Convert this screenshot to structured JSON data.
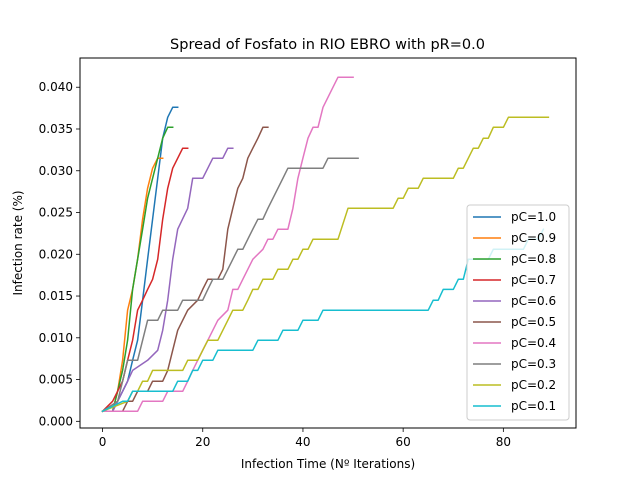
{
  "chart_data": {
    "type": "line",
    "title": "Spread of Fosfato in RIO EBRO with pR=0.0",
    "xlabel": "Infection Time (Nº Iterations)",
    "ylabel": "Infection rate (%)",
    "xlim": [
      -4.5,
      94.5
    ],
    "ylim": [
      -0.0008,
      0.0435
    ],
    "xticks": [
      0,
      20,
      40,
      60,
      80
    ],
    "xtick_labels": [
      "0",
      "20",
      "40",
      "60",
      "80"
    ],
    "yticks": [
      0.0,
      0.005,
      0.01,
      0.015,
      0.02,
      0.025,
      0.03,
      0.035,
      0.04
    ],
    "ytick_labels": [
      "0.000",
      "0.005",
      "0.010",
      "0.015",
      "0.020",
      "0.025",
      "0.030",
      "0.035",
      "0.040"
    ],
    "grid": false,
    "legend_position": "lower-right",
    "series": [
      {
        "name": "pC=1.0",
        "color": "#1f77b4",
        "points": [
          [
            0,
            0.0012
          ],
          [
            2,
            0.0012
          ],
          [
            3,
            0.0024
          ],
          [
            4,
            0.0036
          ],
          [
            5,
            0.0048
          ],
          [
            6,
            0.0073
          ],
          [
            7,
            0.0097
          ],
          [
            8,
            0.0145
          ],
          [
            9,
            0.0194
          ],
          [
            10,
            0.0242
          ],
          [
            11,
            0.0291
          ],
          [
            12,
            0.0339
          ],
          [
            13,
            0.0364
          ],
          [
            14,
            0.0376
          ],
          [
            15,
            0.0376
          ]
        ]
      },
      {
        "name": "pC=0.9",
        "color": "#ff7f0e",
        "points": [
          [
            0,
            0.0012
          ],
          [
            2,
            0.0012
          ],
          [
            3,
            0.0036
          ],
          [
            4,
            0.0073
          ],
          [
            5,
            0.0133
          ],
          [
            6,
            0.0158
          ],
          [
            7,
            0.0194
          ],
          [
            8,
            0.0242
          ],
          [
            9,
            0.0279
          ],
          [
            10,
            0.0303
          ],
          [
            11,
            0.0315
          ],
          [
            12,
            0.0315
          ]
        ]
      },
      {
        "name": "pC=0.8",
        "color": "#2ca02c",
        "points": [
          [
            0,
            0.0012
          ],
          [
            2,
            0.0012
          ],
          [
            3,
            0.0036
          ],
          [
            4,
            0.0061
          ],
          [
            5,
            0.0097
          ],
          [
            6,
            0.0158
          ],
          [
            7,
            0.0194
          ],
          [
            8,
            0.023
          ],
          [
            9,
            0.0267
          ],
          [
            10,
            0.0291
          ],
          [
            11,
            0.0315
          ],
          [
            12,
            0.0339
          ],
          [
            13,
            0.0352
          ],
          [
            14,
            0.0352
          ]
        ]
      },
      {
        "name": "pC=0.7",
        "color": "#d62728",
        "points": [
          [
            0,
            0.0012
          ],
          [
            2,
            0.0024
          ],
          [
            3,
            0.0036
          ],
          [
            4,
            0.0048
          ],
          [
            5,
            0.0073
          ],
          [
            6,
            0.0097
          ],
          [
            7,
            0.0133
          ],
          [
            8,
            0.0145
          ],
          [
            9,
            0.0158
          ],
          [
            10,
            0.017
          ],
          [
            11,
            0.0194
          ],
          [
            12,
            0.0242
          ],
          [
            13,
            0.0279
          ],
          [
            14,
            0.0303
          ],
          [
            15,
            0.0315
          ],
          [
            16,
            0.0327
          ],
          [
            17,
            0.0327
          ]
        ]
      },
      {
        "name": "pC=0.6",
        "color": "#9467bd",
        "points": [
          [
            0,
            0.0012
          ],
          [
            2,
            0.0012
          ],
          [
            3,
            0.0024
          ],
          [
            4,
            0.0036
          ],
          [
            5,
            0.0048
          ],
          [
            6,
            0.0061
          ],
          [
            9,
            0.0073
          ],
          [
            11,
            0.0085
          ],
          [
            12,
            0.0109
          ],
          [
            13,
            0.0145
          ],
          [
            14,
            0.0194
          ],
          [
            15,
            0.023
          ],
          [
            17,
            0.0255
          ],
          [
            18,
            0.0291
          ],
          [
            20,
            0.0291
          ],
          [
            21,
            0.0303
          ],
          [
            22,
            0.0315
          ],
          [
            24,
            0.0315
          ],
          [
            25,
            0.0327
          ],
          [
            26,
            0.0327
          ]
        ]
      },
      {
        "name": "pC=0.5",
        "color": "#8c564b",
        "points": [
          [
            0,
            0.0012
          ],
          [
            4,
            0.0012
          ],
          [
            5,
            0.0024
          ],
          [
            6,
            0.0024
          ],
          [
            7,
            0.0036
          ],
          [
            9,
            0.0036
          ],
          [
            10,
            0.0048
          ],
          [
            12,
            0.0048
          ],
          [
            13,
            0.0061
          ],
          [
            14,
            0.0085
          ],
          [
            15,
            0.0109
          ],
          [
            17,
            0.0133
          ],
          [
            19,
            0.0145
          ],
          [
            20,
            0.0158
          ],
          [
            21,
            0.017
          ],
          [
            23,
            0.017
          ],
          [
            24,
            0.0182
          ],
          [
            25,
            0.023
          ],
          [
            26,
            0.0255
          ],
          [
            27,
            0.0279
          ],
          [
            28,
            0.0291
          ],
          [
            29,
            0.0315
          ],
          [
            30,
            0.0327
          ],
          [
            31,
            0.0339
          ],
          [
            32,
            0.0352
          ],
          [
            33,
            0.0352
          ]
        ]
      },
      {
        "name": "pC=0.4",
        "color": "#e377c2",
        "points": [
          [
            0,
            0.0012
          ],
          [
            7,
            0.0012
          ],
          [
            8,
            0.0024
          ],
          [
            12,
            0.0024
          ],
          [
            13,
            0.0036
          ],
          [
            16,
            0.0036
          ],
          [
            17,
            0.0048
          ],
          [
            18,
            0.0061
          ],
          [
            19,
            0.0073
          ],
          [
            20,
            0.0085
          ],
          [
            21,
            0.0097
          ],
          [
            22,
            0.0109
          ],
          [
            23,
            0.0121
          ],
          [
            25,
            0.0133
          ],
          [
            26,
            0.0158
          ],
          [
            27,
            0.0158
          ],
          [
            28,
            0.017
          ],
          [
            29,
            0.0182
          ],
          [
            30,
            0.0194
          ],
          [
            32,
            0.0206
          ],
          [
            33,
            0.0218
          ],
          [
            34,
            0.0218
          ],
          [
            35,
            0.023
          ],
          [
            37,
            0.023
          ],
          [
            38,
            0.0255
          ],
          [
            39,
            0.0291
          ],
          [
            40,
            0.0315
          ],
          [
            41,
            0.0339
          ],
          [
            42,
            0.0352
          ],
          [
            43,
            0.0352
          ],
          [
            44,
            0.0376
          ],
          [
            46,
            0.04
          ],
          [
            47,
            0.0412
          ],
          [
            50,
            0.0412
          ]
        ]
      },
      {
        "name": "pC=0.3",
        "color": "#7f7f7f",
        "points": [
          [
            0,
            0.0012
          ],
          [
            3,
            0.0024
          ],
          [
            4,
            0.0048
          ],
          [
            5,
            0.0073
          ],
          [
            7,
            0.0073
          ],
          [
            8,
            0.0097
          ],
          [
            9,
            0.0121
          ],
          [
            11,
            0.0121
          ],
          [
            12,
            0.0133
          ],
          [
            15,
            0.0133
          ],
          [
            16,
            0.0145
          ],
          [
            20,
            0.0145
          ],
          [
            21,
            0.0158
          ],
          [
            22,
            0.017
          ],
          [
            24,
            0.017
          ],
          [
            25,
            0.0182
          ],
          [
            26,
            0.0194
          ],
          [
            27,
            0.0206
          ],
          [
            28,
            0.0206
          ],
          [
            29,
            0.0218
          ],
          [
            30,
            0.023
          ],
          [
            31,
            0.0242
          ],
          [
            32,
            0.0242
          ],
          [
            33,
            0.0255
          ],
          [
            34,
            0.0267
          ],
          [
            35,
            0.0279
          ],
          [
            36,
            0.0291
          ],
          [
            37,
            0.0303
          ],
          [
            44,
            0.0303
          ],
          [
            45,
            0.0315
          ],
          [
            51,
            0.0315
          ]
        ]
      },
      {
        "name": "pC=0.2",
        "color": "#bcbd22",
        "points": [
          [
            0,
            0.0012
          ],
          [
            5,
            0.0024
          ],
          [
            6,
            0.0036
          ],
          [
            7,
            0.0036
          ],
          [
            8,
            0.0048
          ],
          [
            9,
            0.0048
          ],
          [
            10,
            0.0061
          ],
          [
            16,
            0.0061
          ],
          [
            17,
            0.0073
          ],
          [
            19,
            0.0073
          ],
          [
            20,
            0.0085
          ],
          [
            21,
            0.0097
          ],
          [
            23,
            0.0097
          ],
          [
            24,
            0.0109
          ],
          [
            25,
            0.0121
          ],
          [
            26,
            0.0133
          ],
          [
            28,
            0.0133
          ],
          [
            29,
            0.0145
          ],
          [
            30,
            0.0158
          ],
          [
            31,
            0.0158
          ],
          [
            32,
            0.017
          ],
          [
            34,
            0.017
          ],
          [
            35,
            0.0182
          ],
          [
            37,
            0.0182
          ],
          [
            38,
            0.0194
          ],
          [
            39,
            0.0194
          ],
          [
            40,
            0.0206
          ],
          [
            41,
            0.0206
          ],
          [
            42,
            0.0218
          ],
          [
            47,
            0.0218
          ],
          [
            49,
            0.0255
          ],
          [
            58,
            0.0255
          ],
          [
            59,
            0.0267
          ],
          [
            60,
            0.0267
          ],
          [
            61,
            0.0279
          ],
          [
            63,
            0.0279
          ],
          [
            64,
            0.0291
          ],
          [
            70,
            0.0291
          ],
          [
            71,
            0.0303
          ],
          [
            72,
            0.0303
          ],
          [
            73,
            0.0315
          ],
          [
            74,
            0.0327
          ],
          [
            75,
            0.0327
          ],
          [
            76,
            0.0339
          ],
          [
            77,
            0.0339
          ],
          [
            78,
            0.0352
          ],
          [
            80,
            0.0352
          ],
          [
            81,
            0.0364
          ],
          [
            89,
            0.0364
          ]
        ]
      },
      {
        "name": "pC=0.1",
        "color": "#17becf",
        "points": [
          [
            0,
            0.0012
          ],
          [
            4,
            0.0024
          ],
          [
            5,
            0.0024
          ],
          [
            6,
            0.0036
          ],
          [
            14,
            0.0036
          ],
          [
            15,
            0.0048
          ],
          [
            17,
            0.0048
          ],
          [
            18,
            0.0061
          ],
          [
            19,
            0.0061
          ],
          [
            20,
            0.0073
          ],
          [
            22,
            0.0073
          ],
          [
            23,
            0.0085
          ],
          [
            30,
            0.0085
          ],
          [
            31,
            0.0097
          ],
          [
            35,
            0.0097
          ],
          [
            36,
            0.0109
          ],
          [
            39,
            0.0109
          ],
          [
            40,
            0.0121
          ],
          [
            43,
            0.0121
          ],
          [
            44,
            0.0133
          ],
          [
            65,
            0.0133
          ],
          [
            66,
            0.0145
          ],
          [
            67,
            0.0145
          ],
          [
            68,
            0.0158
          ],
          [
            70,
            0.0158
          ],
          [
            71,
            0.017
          ],
          [
            72,
            0.017
          ],
          [
            73,
            0.0194
          ],
          [
            77,
            0.0194
          ],
          [
            78,
            0.0206
          ],
          [
            84,
            0.0206
          ],
          [
            85,
            0.0218
          ],
          [
            87,
            0.0218
          ],
          [
            88,
            0.023
          ]
        ]
      }
    ]
  }
}
